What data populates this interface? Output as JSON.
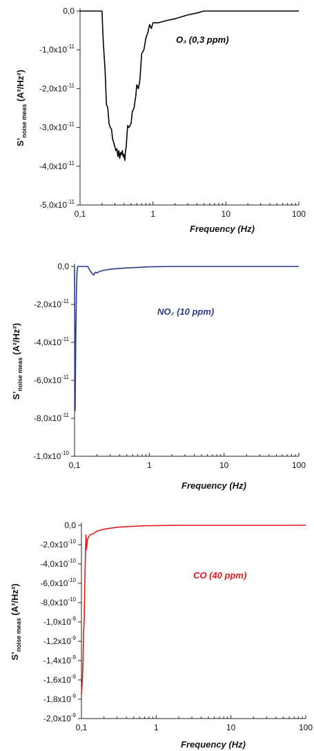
{
  "chart_data": [
    {
      "id": "o3",
      "type": "line",
      "xscale": "log",
      "xlim": [
        0.1,
        100
      ],
      "ylim": [
        -5e-11,
        0
      ],
      "xticks": [
        {
          "v": 0.1,
          "label": "0,1"
        },
        {
          "v": 1,
          "label": "1"
        },
        {
          "v": 10,
          "label": "10"
        },
        {
          "v": 100,
          "label": "100"
        }
      ],
      "yticks": [
        {
          "v": 0,
          "m": "0,0",
          "e": ""
        },
        {
          "v": -1e-11,
          "m": "-1,0x10",
          "e": "-11"
        },
        {
          "v": -2e-11,
          "m": "-2,0x10",
          "e": "-11"
        },
        {
          "v": -3e-11,
          "m": "-3,0x10",
          "e": "-11"
        },
        {
          "v": -4e-11,
          "m": "-4,0x10",
          "e": "-11"
        },
        {
          "v": -5e-11,
          "m": "-5,0x10",
          "e": "-11"
        }
      ],
      "xlabel": "Frequency (Hz)",
      "ylabel": {
        "main": "S’",
        "sub": "noise meas",
        "unit": "(A²/Hz²)"
      },
      "annotation": "O₃ (0,3 ppm)",
      "color": "#000000",
      "series": [
        {
          "x": [
            0.1,
            0.2,
            0.205,
            0.21,
            0.22,
            0.23,
            0.24,
            0.25,
            0.26,
            0.27,
            0.28,
            0.29,
            0.3,
            0.31,
            0.32,
            0.33,
            0.34,
            0.35,
            0.36,
            0.37,
            0.38,
            0.39,
            0.4,
            0.41,
            0.42,
            0.43,
            0.44,
            0.45,
            0.47,
            0.5,
            0.52,
            0.55,
            0.58,
            0.6,
            0.63,
            0.66,
            0.7,
            0.75,
            0.8,
            0.85,
            0.9,
            0.95,
            1.0,
            1.2,
            1.5,
            2,
            3,
            4,
            5,
            6,
            10,
            20,
            50,
            100
          ],
          "y": [
            0,
            0,
            -5e-12,
            -9e-12,
            -1.5e-11,
            -2.4e-11,
            -2.5e-11,
            -2.9e-11,
            -3e-11,
            -3.05e-11,
            -3.3e-11,
            -3.4e-11,
            -3.5e-11,
            -3.6e-11,
            -3.55e-11,
            -3.75e-11,
            -3.6e-11,
            -3.8e-11,
            -3.65e-11,
            -3.7e-11,
            -3.6e-11,
            -3.75e-11,
            -3.7e-11,
            -3.85e-11,
            -3.6e-11,
            -3.5e-11,
            -3.2e-11,
            -2.95e-11,
            -3e-11,
            -2.9e-11,
            -2.6e-11,
            -2.5e-11,
            -2.2e-11,
            -1.9e-11,
            -2e-11,
            -1.8e-11,
            -1.1e-11,
            -1e-11,
            -7e-12,
            -5.5e-12,
            -3.5e-12,
            -4.5e-12,
            -3e-12,
            -3e-12,
            -2.5e-12,
            -2e-12,
            -1e-12,
            -5e-13,
            0,
            0,
            0,
            0,
            0,
            0
          ]
        }
      ]
    },
    {
      "id": "no2",
      "type": "line",
      "xscale": "log",
      "xlim": [
        0.1,
        100
      ],
      "ylim": [
        -1e-10,
        0
      ],
      "xticks": [
        {
          "v": 0.1,
          "label": "0,1"
        },
        {
          "v": 1,
          "label": "1"
        },
        {
          "v": 10,
          "label": "10"
        },
        {
          "v": 100,
          "label": "100"
        }
      ],
      "yticks": [
        {
          "v": 0,
          "m": "0,0",
          "e": ""
        },
        {
          "v": -2e-11,
          "m": "-2,0x10",
          "e": "-11"
        },
        {
          "v": -4e-11,
          "m": "-4,0x10",
          "e": "-11"
        },
        {
          "v": -6e-11,
          "m": "-6,0x10",
          "e": "-11"
        },
        {
          "v": -8e-11,
          "m": "-8,0x10",
          "e": "-11"
        },
        {
          "v": -1e-10,
          "m": "-1,0x10",
          "e": "-10"
        }
      ],
      "xlabel": "Frequency (Hz)",
      "ylabel": {
        "main": "S’",
        "sub": "noise meas",
        "unit": "(A²/Hz²)"
      },
      "annotation": "NO₂ (10 ppm)",
      "color": "#2a3a8c",
      "series": [
        {
          "x": [
            0.1,
            0.102,
            0.104,
            0.106,
            0.108,
            0.11,
            0.113,
            0.116,
            0.12,
            0.13,
            0.14,
            0.15,
            0.16,
            0.17,
            0.18,
            0.19,
            0.2,
            0.22,
            0.25,
            0.3,
            0.4,
            0.5,
            0.7,
            1,
            2,
            5,
            10,
            100
          ],
          "y": [
            0,
            -7.6e-11,
            -3.8e-11,
            -1.5e-11,
            -3e-12,
            0,
            0,
            0,
            0,
            0,
            0,
            0,
            -2e-12,
            -3.5e-12,
            -4.5e-12,
            -3e-12,
            -3.5e-12,
            -2.5e-12,
            -2e-12,
            -1.5e-12,
            -1e-12,
            -8e-13,
            -5e-13,
            -2e-13,
            0,
            0,
            0,
            0
          ]
        }
      ]
    },
    {
      "id": "co",
      "type": "line",
      "xscale": "log",
      "xlim": [
        0.1,
        100
      ],
      "ylim": [
        -2e-09,
        0
      ],
      "xticks": [
        {
          "v": 0.1,
          "label": "0,1"
        },
        {
          "v": 1,
          "label": "1"
        },
        {
          "v": 10,
          "label": "10"
        },
        {
          "v": 100,
          "label": "100"
        }
      ],
      "yticks": [
        {
          "v": 0,
          "m": "0,0",
          "e": ""
        },
        {
          "v": -2e-10,
          "m": "-2,0x10",
          "e": "-10"
        },
        {
          "v": -4e-10,
          "m": "-4,0x10",
          "e": "-10"
        },
        {
          "v": -6e-10,
          "m": "-6,0x10",
          "e": "-10"
        },
        {
          "v": -8e-10,
          "m": "-8,0x10",
          "e": "-10"
        },
        {
          "v": -1e-09,
          "m": "-1,0x10",
          "e": "-9"
        },
        {
          "v": -1.2e-09,
          "m": "-1,2x10",
          "e": "-9"
        },
        {
          "v": -1.4e-09,
          "m": "-1,4x10",
          "e": "-9"
        },
        {
          "v": -1.6e-09,
          "m": "-1,6x10",
          "e": "-9"
        },
        {
          "v": -1.8e-09,
          "m": "-1,8x10",
          "e": "-9"
        },
        {
          "v": -2e-09,
          "m": "-2,0x10",
          "e": "-9"
        }
      ],
      "xlabel": "Frequency (Hz)",
      "ylabel": {
        "main": "S’",
        "sub": "noise meas",
        "unit": "(A²/Hz²)"
      },
      "annotation": "CO (40 ppm)",
      "color": "#e01b1b",
      "series": [
        {
          "x": [
            0.1,
            0.101,
            0.103,
            0.105,
            0.107,
            0.109,
            0.111,
            0.113,
            0.115,
            0.117,
            0.12,
            0.125,
            0.13,
            0.14,
            0.15,
            0.16,
            0.18,
            0.2,
            0.25,
            0.3,
            0.4,
            0.5,
            0.7,
            1,
            2,
            5,
            10,
            100
          ],
          "y": [
            -1.75e-09,
            -1.7e-09,
            -1.6e-09,
            -1.4e-09,
            -1.1e-09,
            -9.5e-10,
            -6e-10,
            -3e-10,
            -1e-10,
            -2.5e-10,
            -1.5e-10,
            -1.2e-10,
            -1e-10,
            -9e-11,
            -8e-11,
            -6e-11,
            -5e-11,
            -4e-11,
            -3e-11,
            -2e-11,
            -1.5e-11,
            -1e-11,
            -5e-12,
            -3e-12,
            0,
            0,
            0,
            0
          ]
        }
      ]
    }
  ]
}
